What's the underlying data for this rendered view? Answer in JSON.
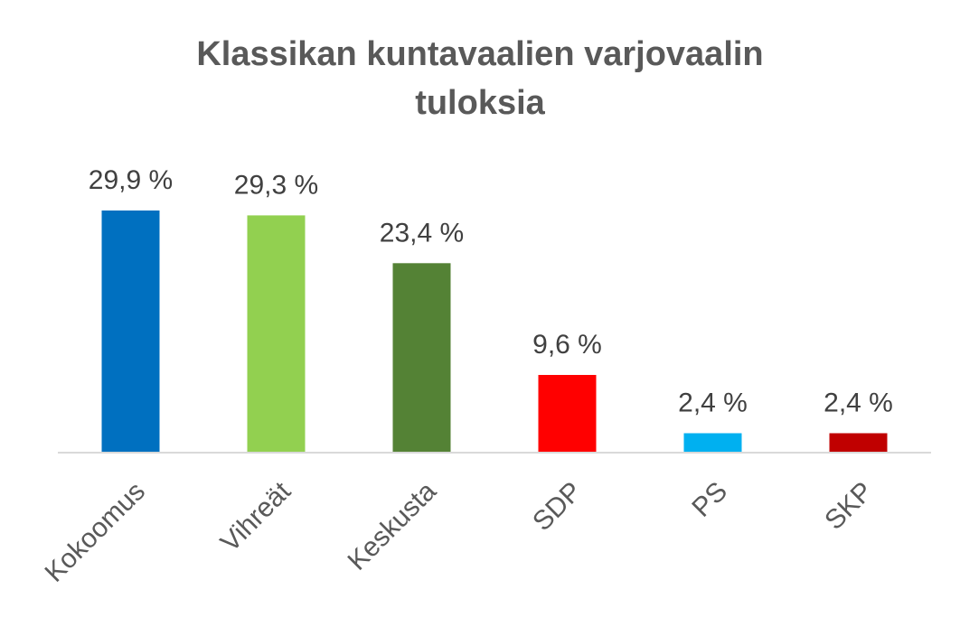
{
  "chart_data": {
    "type": "bar",
    "title_lines": [
      "Klassikan kuntavaalien varjovaalin",
      "tuloksia"
    ],
    "categories": [
      "Kokoomus",
      "Vihreät",
      "Keskusta",
      "SDP",
      "PS",
      "SKP"
    ],
    "values": [
      29.9,
      29.3,
      23.4,
      9.6,
      2.4,
      2.4
    ],
    "value_labels": [
      "29,9 %",
      "29,3 %",
      "23,4 %",
      "9,6 %",
      "2,4 %",
      "2,4 %"
    ],
    "colors": [
      "#0070C0",
      "#92D050",
      "#548235",
      "#FF0000",
      "#00B0F0",
      "#C00000"
    ],
    "ylim": [
      0,
      30
    ],
    "grid": false,
    "legend": "none",
    "axis_color": "#D9D9D9"
  }
}
